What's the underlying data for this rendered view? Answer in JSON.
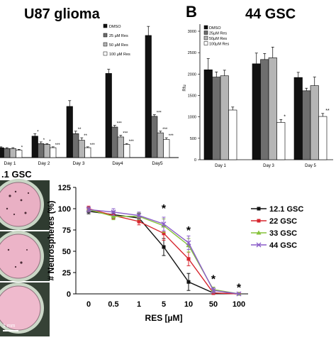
{
  "colors": {
    "dmso": "#111111",
    "r25": "#6e6e6e",
    "r50": "#b5b5b5",
    "r100": "#ffffff",
    "g121": "#111111",
    "g22": "#d7262e",
    "g33": "#86c23a",
    "g44": "#8a5cc8",
    "dish_edge": "#3c4a3c",
    "dish_fill": "#ebb3c6"
  },
  "chart_data": [
    {
      "id": "panel-a",
      "type": "bar",
      "title": "U87 glioma",
      "categories": [
        "Day 1",
        "Day 2",
        "Day 3",
        "Day4",
        "Day5"
      ],
      "series": [
        {
          "name": "DMSO",
          "values": [
            0.6,
            1.3,
            3.1,
            5.1,
            7.4
          ],
          "errors": [
            0.05,
            0.15,
            0.35,
            0.25,
            0.55
          ]
        },
        {
          "name": "25 µM Res",
          "values": [
            0.55,
            0.85,
            1.45,
            1.85,
            2.5
          ],
          "errors": [
            0.05,
            0.1,
            0.15,
            0.1,
            0.1
          ]
        },
        {
          "name": "50 µM Res",
          "values": [
            0.55,
            0.8,
            1.05,
            1.25,
            1.5
          ],
          "errors": [
            0.05,
            0.05,
            0.15,
            0.1,
            0.1
          ]
        },
        {
          "name": "100 µM Res",
          "values": [
            0.45,
            0.6,
            0.6,
            0.8,
            1.1
          ],
          "errors": [
            0.05,
            0.05,
            0.05,
            0.05,
            0.1
          ]
        }
      ],
      "significance": [
        [
          "",
          "",
          "",
          "*"
        ],
        [
          "*",
          "*",
          "*",
          "***"
        ],
        [
          "",
          "**",
          "**",
          "***"
        ],
        [
          "",
          "***",
          "***",
          "***"
        ],
        [
          "",
          "***",
          "***",
          "***"
        ]
      ],
      "ylim": [
        0,
        8
      ]
    },
    {
      "id": "panel-b",
      "type": "bar",
      "letter": "B",
      "title": "44 GSC",
      "ylabel": "Rfu",
      "yticks": [
        0,
        500,
        1000,
        1500,
        2000,
        2500,
        3000
      ],
      "ylim": [
        0,
        3000
      ],
      "categories": [
        "Day 1",
        "Day 3",
        "Day 5"
      ],
      "series": [
        {
          "name": "DMSO",
          "values": [
            2100,
            2240,
            1920
          ],
          "errors": [
            260,
            250,
            120
          ]
        },
        {
          "name": "25µM Res",
          "values": [
            1930,
            2340,
            1610
          ],
          "errors": [
            120,
            140,
            60
          ]
        },
        {
          "name": "50µM Res",
          "values": [
            1960,
            2380,
            1730
          ],
          "errors": [
            130,
            250,
            200
          ]
        },
        {
          "name": "100µM Res",
          "values": [
            1160,
            870,
            1010
          ],
          "errors": [
            70,
            70,
            70
          ]
        }
      ],
      "significance": [
        [
          "",
          "",
          "",
          ""
        ],
        [
          "",
          "",
          "",
          "*"
        ],
        [
          "",
          "",
          "",
          "**"
        ]
      ]
    },
    {
      "id": "panel-d",
      "type": "line",
      "xlabel": "RES [µM]",
      "ylabel": "# Neurospheres (%)",
      "categories": [
        "0",
        "0.5",
        "1",
        "5",
        "10",
        "50",
        "100"
      ],
      "yticks": [
        0,
        25,
        50,
        75,
        100,
        125
      ],
      "ylim": [
        0,
        125
      ],
      "series": [
        {
          "name": "12.1 GSC",
          "values": [
            97,
            93,
            89,
            55,
            14,
            1,
            0
          ],
          "errors": [
            3,
            4,
            5,
            10,
            10,
            1,
            0
          ]
        },
        {
          "name": "22 GSC",
          "values": [
            100,
            92,
            85,
            71,
            41,
            1,
            0
          ],
          "errors": [
            3,
            4,
            4,
            8,
            8,
            1,
            0
          ]
        },
        {
          "name": "33 GSC",
          "values": [
            99,
            91,
            91,
            80,
            57,
            5,
            0
          ],
          "errors": [
            3,
            4,
            4,
            8,
            8,
            3,
            0
          ]
        },
        {
          "name": "44 GSC",
          "values": [
            99,
            96,
            92,
            82,
            60,
            4,
            0
          ],
          "errors": [
            3,
            4,
            4,
            8,
            8,
            3,
            0
          ]
        }
      ],
      "stars": [
        {
          "x": "5",
          "y": 101
        },
        {
          "x": "10",
          "y": 75
        },
        {
          "x": "50",
          "y": 18
        },
        {
          "x": "100",
          "y": 8
        }
      ]
    }
  ],
  "images": {
    "panel_label": ".1 GSC",
    "scale_label": "1 mm"
  }
}
